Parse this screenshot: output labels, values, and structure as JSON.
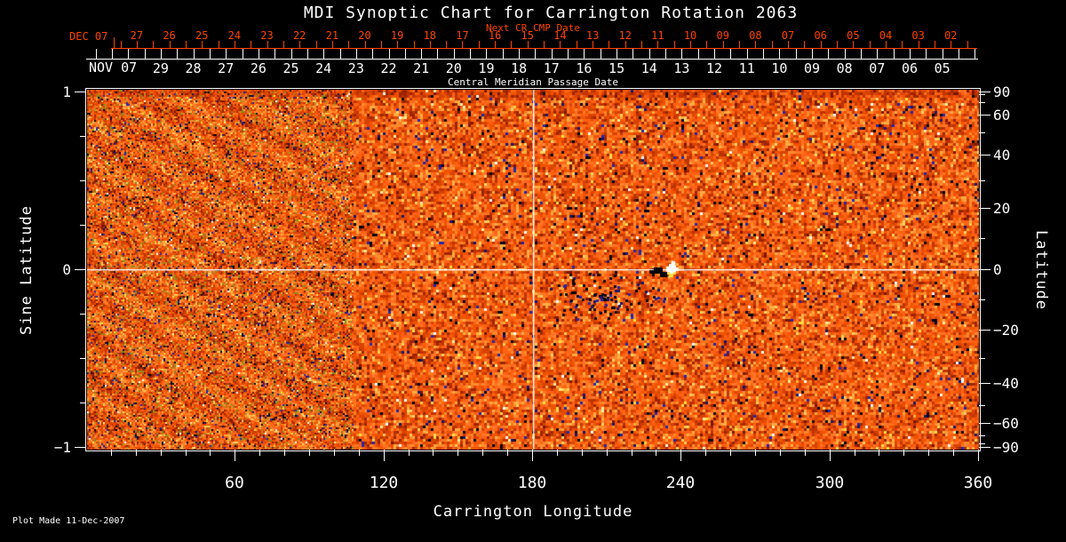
{
  "title": "MDI Synoptic Chart for Carrington Rotation 2063",
  "colors": {
    "background": "#000000",
    "axis_white": "#ffffff",
    "axis_red": "#ff4400",
    "field_base": "#f05510"
  },
  "top_axis_next_cr": {
    "label": "Next CR CMP Date",
    "month_label": "DEC 07",
    "tick_labels": [
      "27",
      "26",
      "25",
      "24",
      "23",
      "22",
      "21",
      "20",
      "19",
      "18",
      "17",
      "16",
      "15",
      "14",
      "13",
      "12",
      "11",
      "10",
      "09",
      "08",
      "07",
      "06",
      "05",
      "04",
      "03",
      "02"
    ]
  },
  "top_axis_cmp": {
    "label": "Central Meridian Passage Date",
    "month_label": "NOV 07",
    "tick_labels": [
      "29",
      "28",
      "27",
      "26",
      "25",
      "24",
      "23",
      "22",
      "21",
      "20",
      "19",
      "18",
      "17",
      "16",
      "15",
      "14",
      "13",
      "12",
      "11",
      "10",
      "09",
      "08",
      "07",
      "06",
      "05"
    ]
  },
  "left_axis": {
    "title": "Sine Latitude",
    "ticks": [
      {
        "value": 1,
        "label": "1"
      },
      {
        "value": 0,
        "label": "0"
      },
      {
        "value": -1,
        "label": "−1"
      }
    ],
    "minor_values": [
      0.75,
      0.5,
      0.25,
      -0.25,
      -0.5,
      -0.75
    ]
  },
  "right_axis": {
    "title": "Latitude",
    "ticks": [
      {
        "lat": 90,
        "label": "90"
      },
      {
        "lat": 60,
        "label": "60"
      },
      {
        "lat": 40,
        "label": "40"
      },
      {
        "lat": 20,
        "label": "20"
      },
      {
        "lat": 0,
        "label": "0"
      },
      {
        "lat": -20,
        "label": "−20"
      },
      {
        "lat": -40,
        "label": "−40"
      },
      {
        "lat": -60,
        "label": "−60"
      },
      {
        "lat": -90,
        "label": "−90"
      }
    ],
    "minor_lats": [
      80,
      70,
      50,
      30,
      10,
      -10,
      -30,
      -50,
      -70,
      -80
    ]
  },
  "bottom_axis": {
    "title": "Carrington Longitude",
    "ticks": [
      {
        "lon": 60,
        "label": "60"
      },
      {
        "lon": 120,
        "label": "120"
      },
      {
        "lon": 180,
        "label": "180"
      },
      {
        "lon": 240,
        "label": "240"
      },
      {
        "lon": 300,
        "label": "300"
      },
      {
        "lon": 360,
        "label": "360"
      }
    ]
  },
  "footer": {
    "plot_made": "Plot Made 11-Dec-2007"
  },
  "image": {
    "ramp": [
      "#7a1500",
      "#9c2400",
      "#bf3300",
      "#d94300",
      "#ef5200",
      "#ff6214",
      "#ff7524",
      "#ff8c2e",
      "#ffad42",
      "#ffd25e"
    ],
    "dark_specks": [
      "#00002e",
      "#16166e",
      "#2525a8",
      "#0a0a14",
      "#000000"
    ],
    "bright_specks": [
      "#ffffff",
      "#ffeea0",
      "#ffe040"
    ],
    "olive_specks": [
      "#9a7d1c",
      "#b5921f",
      "#8a8a20"
    ],
    "reference_lines": {
      "lon": 180,
      "lat": 0,
      "color": "#ffffff"
    },
    "bright_spot": {
      "lon": 236,
      "lat": 0
    },
    "dark_patch": {
      "lon": 232,
      "lat": -1
    },
    "dark_cluster": {
      "lon_center": 208,
      "lat_center": -12
    }
  },
  "chart_data": {
    "type": "heatmap",
    "title": "MDI Synoptic Chart for Carrington Rotation 2063",
    "xlabel": "Carrington Longitude",
    "ylabel_left": "Sine Latitude",
    "ylabel_right": "Latitude",
    "xlim": [
      0,
      360
    ],
    "ylim_sine_latitude": [
      -1,
      1
    ],
    "x_ticks": [
      60,
      120,
      180,
      240,
      300,
      360
    ],
    "left_axis_ticks_sine": [
      1,
      0,
      -1
    ],
    "right_axis_ticks_deg": [
      90,
      60,
      40,
      20,
      0,
      -20,
      -40,
      -60,
      -90
    ],
    "top_axis_next_cr_cmp_dates": {
      "month": "DEC 07",
      "days": [
        27,
        26,
        25,
        24,
        23,
        22,
        21,
        20,
        19,
        18,
        17,
        16,
        15,
        14,
        13,
        12,
        11,
        10,
        9,
        8,
        7,
        6,
        5,
        4,
        3,
        2
      ]
    },
    "top_axis_cmp_dates": {
      "month": "NOV 07",
      "days": [
        29,
        28,
        27,
        26,
        25,
        24,
        23,
        22,
        21,
        20,
        19,
        18,
        17,
        16,
        15,
        14,
        13,
        12,
        11,
        10,
        9,
        8,
        7,
        6,
        5
      ]
    },
    "grid": false,
    "legend": "none",
    "description": "Solar magnetic field synoptic map (MDI magnetogram) rendered as noisy orange/red texture with sparse dark-blue and yellow-white speckles; finer diagonal-grained texture on the left third; white reference lines cross at 180° Carrington longitude and 0° latitude; a bright white active region sits near 236° longitude on the equator with an adjacent dark patch.",
    "annotations": [
      {
        "label": "vertical reference line",
        "lon": 180
      },
      {
        "label": "horizontal reference line",
        "lat": 0
      },
      {
        "label": "bright active region",
        "lon": 236,
        "lat": 0
      },
      {
        "label": "plot creation note",
        "text": "Plot Made 11-Dec-2007"
      }
    ]
  }
}
